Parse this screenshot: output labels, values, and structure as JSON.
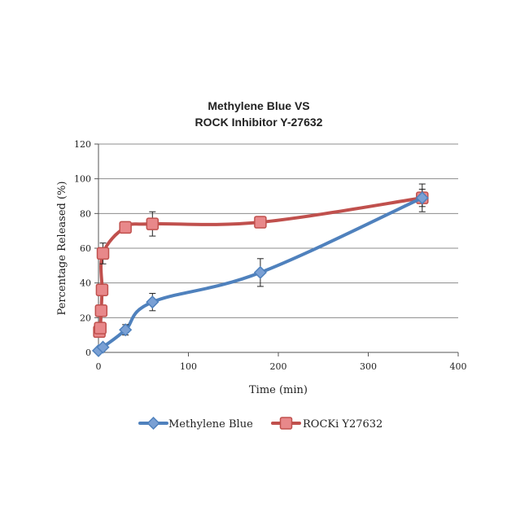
{
  "chart_data": {
    "type": "line",
    "title_lines": [
      "Methylene Blue VS",
      "ROCK Inhibitor Y-27632"
    ],
    "xlabel": "Time (min)",
    "ylabel": "Percentage Released (%)",
    "xlim": [
      0,
      400
    ],
    "ylim": [
      0,
      120
    ],
    "xticks": [
      "0",
      "100",
      "200",
      "300",
      "400"
    ],
    "yticks": [
      "0",
      "20",
      "40",
      "60",
      "80",
      "100",
      "120"
    ],
    "grid": "horizontal",
    "legend_position": "bottom",
    "series": [
      {
        "name": "Methylene Blue",
        "color": "#4f81bd",
        "marker": "diamond",
        "x": [
          0,
          5,
          30,
          60,
          180,
          360
        ],
        "y": [
          1,
          3,
          13,
          29,
          46,
          89
        ],
        "err": [
          1,
          1,
          3,
          5,
          8,
          5
        ]
      },
      {
        "name": "ROCKi Y27632",
        "color": "#c0504d",
        "marker": "square",
        "x": [
          1,
          2,
          3,
          4,
          5,
          30,
          60,
          180,
          360
        ],
        "y": [
          12,
          14,
          24,
          36,
          57,
          72,
          74,
          75,
          89
        ],
        "err": [
          0,
          0,
          0,
          0,
          6,
          2,
          7,
          0,
          8
        ]
      }
    ]
  }
}
